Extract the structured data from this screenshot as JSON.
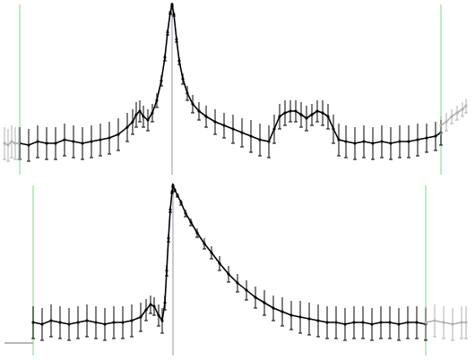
{
  "chart_data": [
    {
      "type": "scatter",
      "xlim": [
        0,
        530
      ],
      "ylim": [
        0,
        100
      ],
      "tick_labels": false,
      "fit_range": [
        22,
        492
      ],
      "center": 192,
      "series": [
        {
          "type": "scatter",
          "color": "#000000",
          "marker": "dot",
          "x": [
            22,
            32,
            42,
            52,
            62,
            72,
            82,
            92,
            102,
            112,
            122,
            132,
            142,
            148,
            152,
            156,
            160,
            165,
            170,
            175,
            180,
            184,
            187,
            190,
            192,
            194,
            197,
            200,
            204,
            209,
            215,
            222,
            230,
            240,
            250,
            260,
            270,
            280,
            290,
            300,
            306,
            312,
            318,
            324,
            330,
            336,
            342,
            348,
            354,
            360,
            366,
            372,
            378,
            386,
            396,
            406,
            416,
            426,
            436,
            446,
            456,
            466,
            476,
            486,
            492
          ],
          "values": [
            20,
            19,
            21,
            20,
            20,
            22,
            21,
            20,
            21,
            22,
            23,
            25,
            29,
            32,
            36,
            38,
            35,
            33,
            37,
            44,
            55,
            68,
            82,
            93,
            97.5,
            92,
            78,
            66,
            56,
            48,
            42,
            38,
            35,
            32,
            30,
            28,
            26,
            24,
            22,
            21,
            28,
            35,
            37,
            38,
            38,
            36,
            34,
            36,
            38,
            37,
            35,
            28,
            22,
            21,
            20,
            21,
            20,
            21,
            20,
            21,
            21,
            22,
            23,
            24,
            26
          ],
          "errors": [
            9,
            9,
            9,
            9,
            9,
            9,
            9,
            9,
            9,
            9,
            9,
            9,
            8,
            7,
            7,
            6,
            6,
            6,
            5,
            4,
            3,
            2,
            1.5,
            1,
            1,
            1,
            1.5,
            2,
            3,
            4,
            5,
            5,
            6,
            7,
            7,
            8,
            8,
            9,
            9,
            9,
            8,
            7,
            7,
            6,
            6,
            7,
            7,
            6,
            6,
            7,
            7,
            8,
            9,
            9,
            9,
            9,
            9,
            9,
            9,
            9,
            9,
            9,
            8,
            8,
            7
          ]
        },
        {
          "type": "scatter",
          "color": "#b0b0b0",
          "marker": "dot",
          "x": [
            5,
            9,
            13,
            17,
            21
          ],
          "values": [
            20,
            19,
            21,
            20,
            20
          ],
          "errors": [
            9,
            9,
            9,
            9,
            9
          ]
        },
        {
          "type": "scatter",
          "color": "#b0b0b0",
          "marker": "dot",
          "x": [
            492,
            498,
            504,
            510,
            516,
            520
          ],
          "values": [
            30,
            32,
            35,
            37,
            39,
            41
          ],
          "errors": [
            5,
            5,
            4,
            4,
            4,
            4
          ]
        }
      ]
    },
    {
      "type": "scatter",
      "xlim": [
        0,
        530
      ],
      "ylim": [
        0,
        100
      ],
      "tick_labels": false,
      "fit_range": [
        37,
        475
      ],
      "center": 193,
      "series": [
        {
          "type": "scatter",
          "color": "#000000",
          "marker": "dot",
          "x": [
            37,
            47,
            57,
            67,
            77,
            87,
            97,
            107,
            117,
            127,
            137,
            147,
            157,
            163,
            168,
            172,
            177,
            181,
            184,
            186,
            188,
            190,
            192,
            193,
            195,
            198,
            202,
            207,
            213,
            220,
            228,
            236,
            245,
            255,
            265,
            275,
            285,
            295,
            305,
            315,
            325,
            335,
            345,
            355,
            365,
            375,
            385,
            395,
            405,
            415,
            425,
            435,
            445,
            455,
            465,
            475
          ],
          "values": [
            21,
            20,
            22,
            21,
            20,
            21,
            22,
            21,
            20,
            21,
            21,
            22,
            24,
            28,
            31,
            30,
            25,
            22,
            32,
            50,
            68,
            84,
            94,
            97.5,
            95,
            92,
            88,
            82,
            77,
            71,
            65,
            60,
            54,
            48,
            43,
            39,
            35,
            32,
            29,
            27,
            25,
            24,
            23,
            22,
            21,
            21,
            20,
            21,
            21,
            20,
            21,
            21,
            20,
            21,
            21,
            20
          ],
          "errors": [
            9,
            9,
            9,
            9,
            9,
            9,
            9,
            9,
            9,
            9,
            9,
            9,
            8,
            6,
            5,
            5,
            6,
            7,
            4,
            3,
            2,
            1.5,
            1,
            1,
            1,
            1,
            1.5,
            2,
            2,
            2.5,
            3,
            3.5,
            4,
            4.5,
            5,
            5.5,
            6,
            7,
            7,
            8,
            8,
            9,
            9,
            9,
            9,
            9,
            9,
            9,
            9,
            9,
            9,
            9,
            9,
            9,
            9,
            9
          ]
        },
        {
          "type": "line",
          "color": "#a0a0a0",
          "x": [
            5,
            37
          ],
          "values": [
            9.5,
            9.5
          ]
        },
        {
          "type": "scatter",
          "color": "#b0b0b0",
          "marker": "dot",
          "x": [
            475,
            485,
            495,
            505,
            515,
            520
          ],
          "values": [
            21,
            22,
            21,
            20,
            21,
            21
          ],
          "errors": [
            9,
            9,
            9,
            9,
            9,
            9
          ]
        }
      ]
    }
  ]
}
